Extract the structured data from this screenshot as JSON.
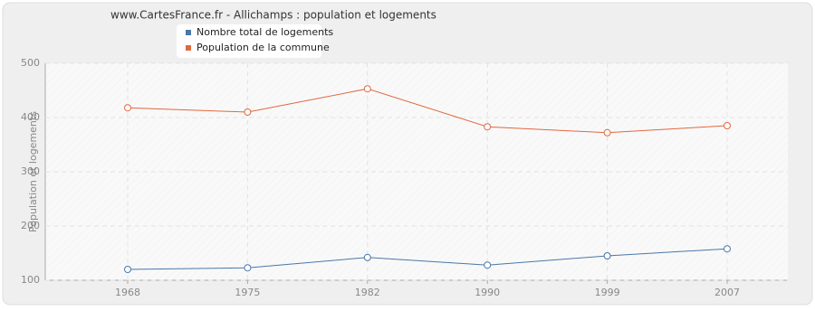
{
  "chart_data": {
    "type": "line",
    "title": "www.CartesFrance.fr - Allichamps : population et logements",
    "y_label": "Population et logements",
    "categories": [
      "1968",
      "1975",
      "1982",
      "1990",
      "1999",
      "2007"
    ],
    "series": [
      {
        "name": "Nombre total de logements",
        "color": "#4a77a8",
        "values": [
          120,
          123,
          142,
          128,
          145,
          158
        ]
      },
      {
        "name": "Population de la commune",
        "color": "#e0683f",
        "values": [
          418,
          410,
          453,
          383,
          372,
          385
        ]
      }
    ],
    "ylim": [
      100,
      500
    ],
    "yticks": [
      100,
      200,
      300,
      400,
      500
    ],
    "grid": true
  }
}
